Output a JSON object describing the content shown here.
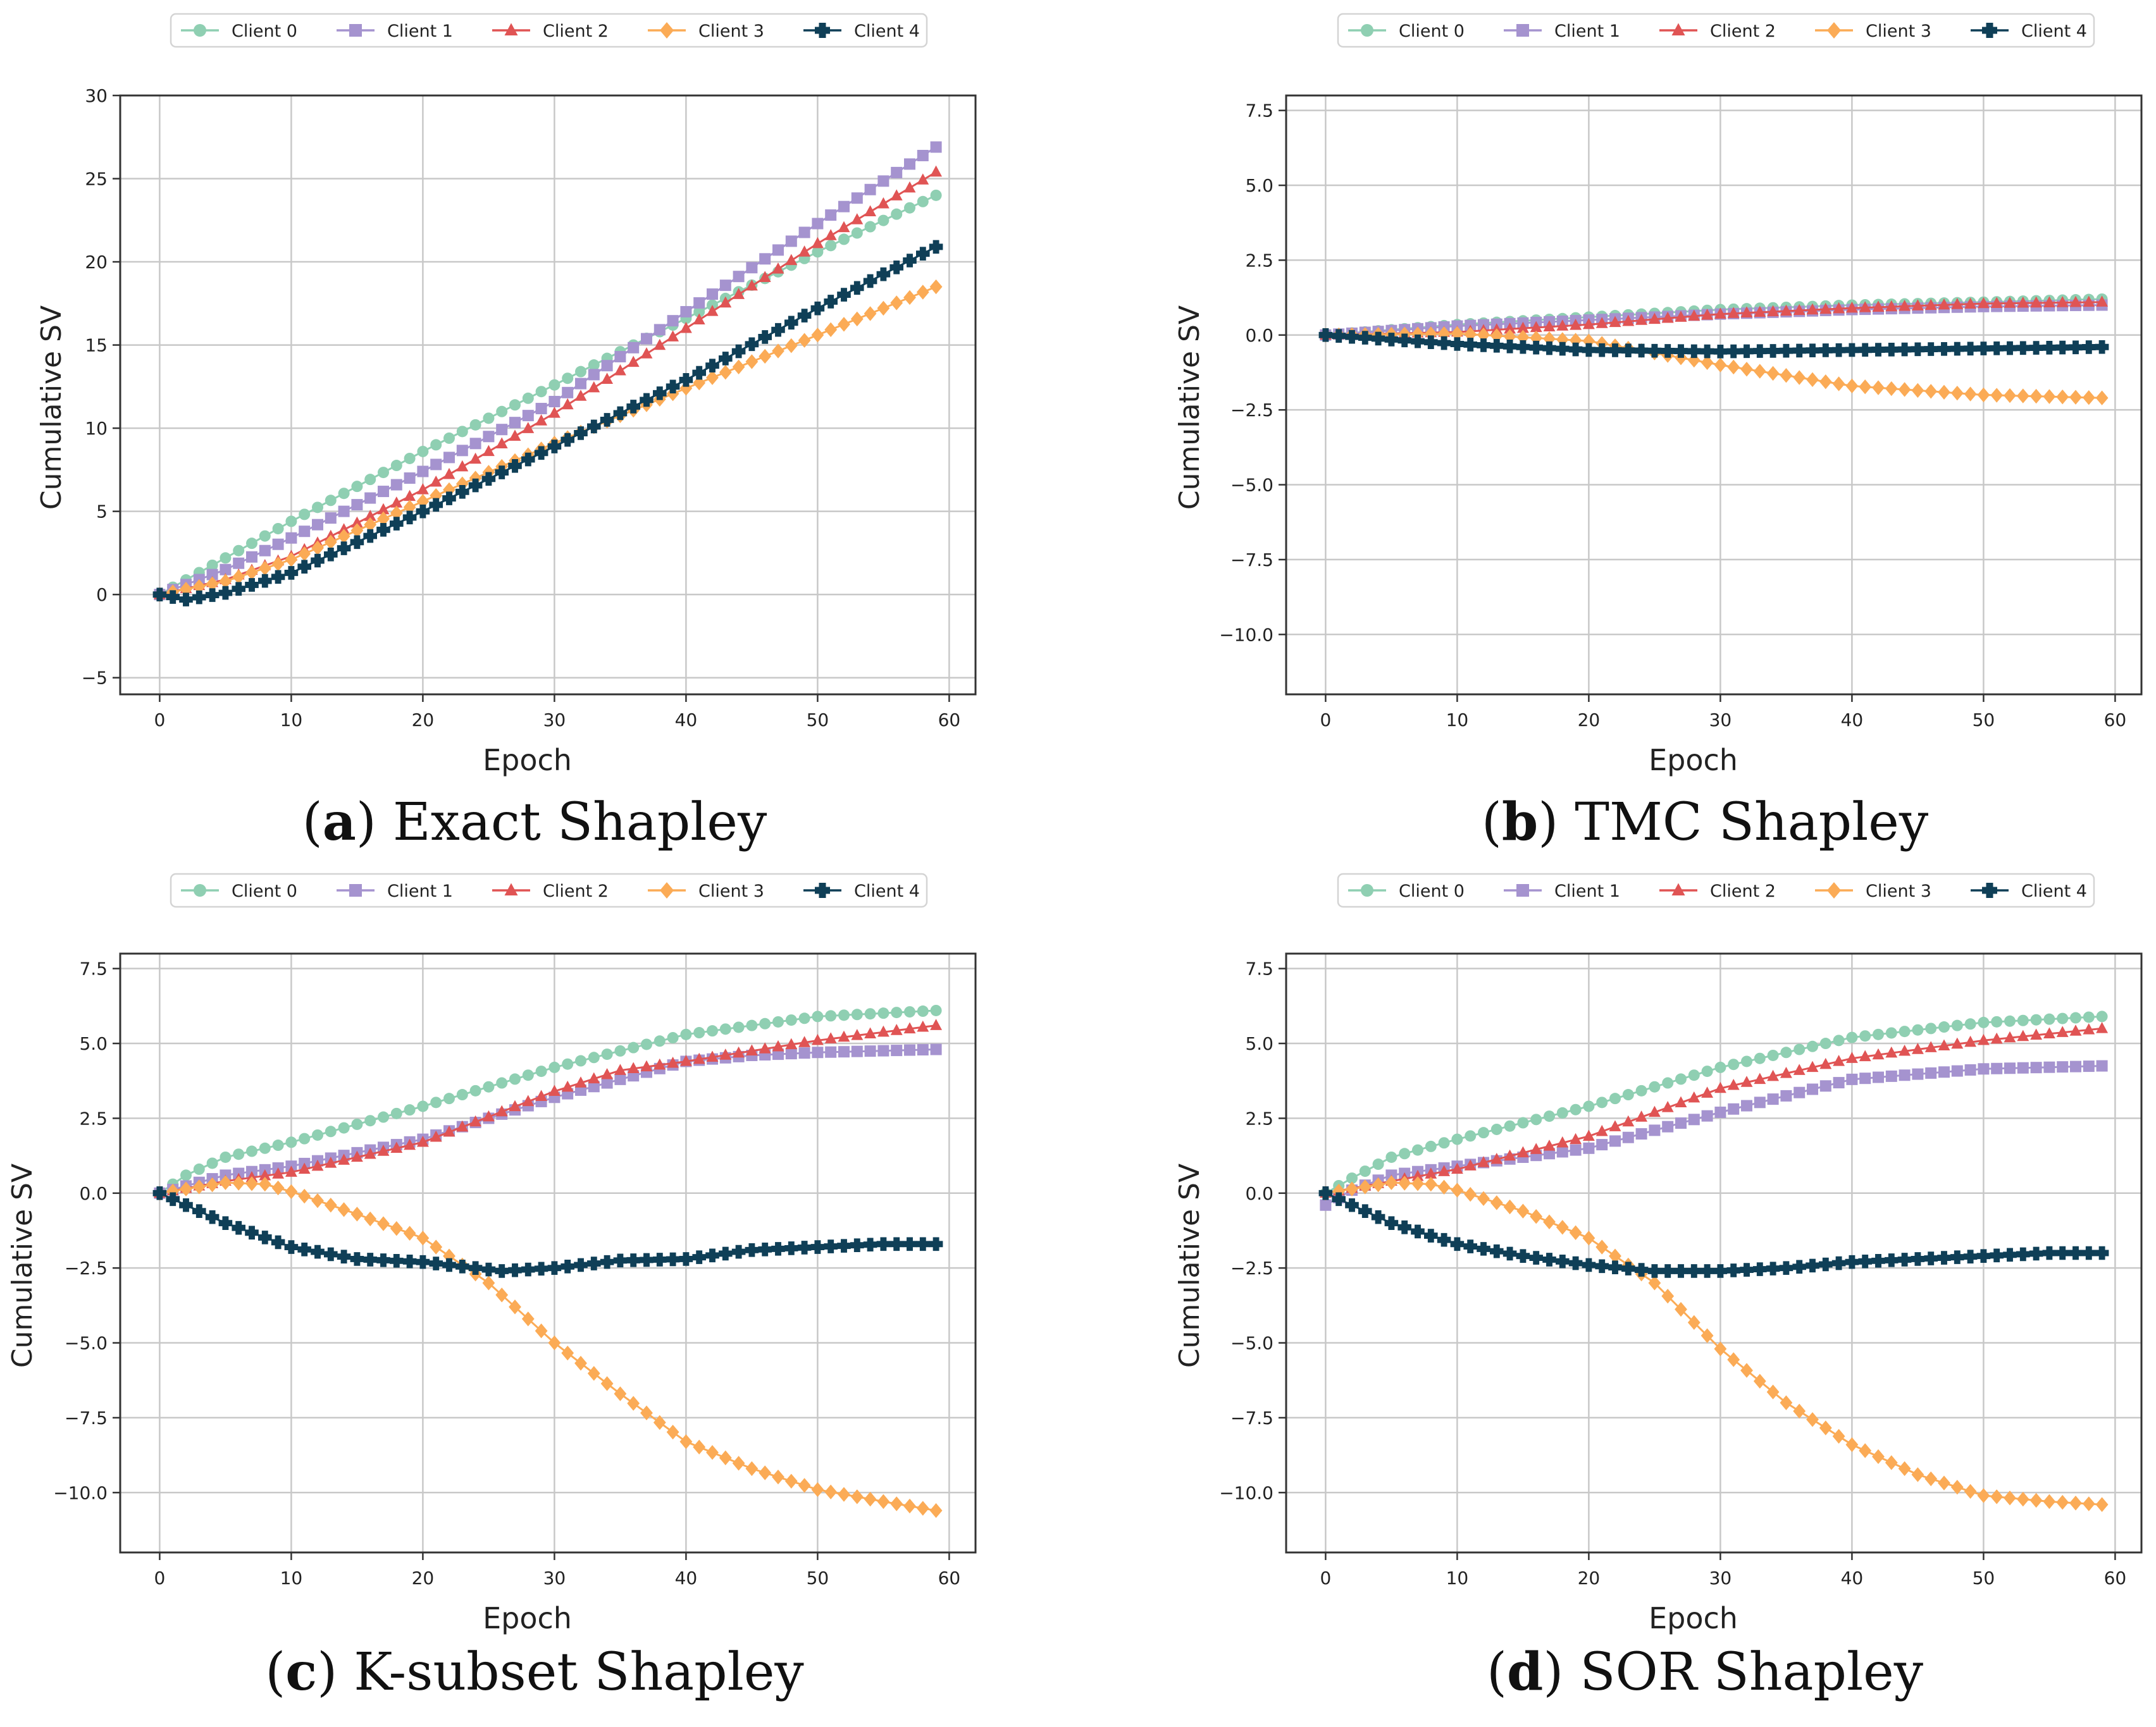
{
  "colors": {
    "client0": "#8fcfb2",
    "client1": "#a593cf",
    "client2": "#e05454",
    "client3": "#fbab56",
    "client4": "#0f3f57"
  },
  "chart_data": [
    {
      "panel": "a",
      "type": "line",
      "caption": {
        "letter": "a",
        "text": "Exact Shapley"
      },
      "xlabel": "Epoch",
      "ylabel": "Cumulative SV",
      "xlim": [
        -3,
        62
      ],
      "ylim": [
        -6,
        30
      ],
      "xticks": [
        0,
        10,
        20,
        30,
        40,
        50,
        60
      ],
      "yticks": [
        -5,
        0,
        5,
        10,
        15,
        20,
        25,
        30
      ],
      "ytick_labels": [
        "−5",
        "0",
        "5",
        "10",
        "15",
        "20",
        "25",
        "30"
      ],
      "legend": [
        "Client 0",
        "Client 1",
        "Client 2",
        "Client 3",
        "Client 4"
      ],
      "series": [
        {
          "name": "Client 0",
          "marker": "circle",
          "color": "#8fcfb2",
          "points": [
            [
              0,
              0
            ],
            [
              5,
              2.2
            ],
            [
              10,
              4.4
            ],
            [
              20,
              8.6
            ],
            [
              30,
              12.6
            ],
            [
              40,
              16.6
            ],
            [
              50,
              20.6
            ],
            [
              59,
              24
            ]
          ]
        },
        {
          "name": "Client 1",
          "marker": "square",
          "color": "#a593cf",
          "points": [
            [
              0,
              0
            ],
            [
              5,
              1.5
            ],
            [
              10,
              3.4
            ],
            [
              20,
              7.4
            ],
            [
              30,
              11.6
            ],
            [
              40,
              17
            ],
            [
              50,
              22.3
            ],
            [
              59,
              26.9
            ]
          ]
        },
        {
          "name": "Client 2",
          "marker": "triangle",
          "color": "#e05454",
          "points": [
            [
              0,
              0
            ],
            [
              5,
              0.9
            ],
            [
              10,
              2.3
            ],
            [
              20,
              6.3
            ],
            [
              30,
              10.9
            ],
            [
              40,
              16
            ],
            [
              50,
              21.1
            ],
            [
              59,
              25.4
            ]
          ]
        },
        {
          "name": "Client 3",
          "marker": "diamond",
          "color": "#fbab56",
          "points": [
            [
              0,
              0
            ],
            [
              5,
              0.8
            ],
            [
              10,
              2.1
            ],
            [
              20,
              5.6
            ],
            [
              30,
              9.1
            ],
            [
              40,
              12.4
            ],
            [
              50,
              15.6
            ],
            [
              59,
              18.5
            ]
          ]
        },
        {
          "name": "Client 4",
          "marker": "plus",
          "color": "#0f3f57",
          "points": [
            [
              0,
              0
            ],
            [
              2,
              -0.3
            ],
            [
              5,
              0.1
            ],
            [
              10,
              1.3
            ],
            [
              20,
              5
            ],
            [
              30,
              8.9
            ],
            [
              40,
              12.9
            ],
            [
              50,
              17.2
            ],
            [
              59,
              20.9
            ]
          ]
        }
      ]
    },
    {
      "panel": "b",
      "type": "line",
      "caption": {
        "letter": "b",
        "text": "TMC Shapley"
      },
      "xlabel": "Epoch",
      "ylabel": "Cumulative SV",
      "xlim": [
        -3,
        62
      ],
      "ylim": [
        -12,
        8
      ],
      "xticks": [
        0,
        10,
        20,
        30,
        40,
        50,
        60
      ],
      "yticks": [
        -10,
        -7.5,
        -5,
        -2.5,
        0,
        2.5,
        5,
        7.5
      ],
      "ytick_labels": [
        "−10.0",
        "−7.5",
        "−5.0",
        "−2.5",
        "0.0",
        "2.5",
        "5.0",
        "7.5"
      ],
      "legend": [
        "Client 0",
        "Client 1",
        "Client 2",
        "Client 3",
        "Client 4"
      ],
      "series": [
        {
          "name": "Client 0",
          "marker": "circle",
          "color": "#8fcfb2",
          "points": [
            [
              0,
              0
            ],
            [
              10,
              0.35
            ],
            [
              20,
              0.6
            ],
            [
              30,
              0.85
            ],
            [
              40,
              1
            ],
            [
              50,
              1.1
            ],
            [
              59,
              1.2
            ]
          ]
        },
        {
          "name": "Client 1",
          "marker": "square",
          "color": "#a593cf",
          "points": [
            [
              0,
              0
            ],
            [
              10,
              0.3
            ],
            [
              20,
              0.5
            ],
            [
              30,
              0.7
            ],
            [
              40,
              0.85
            ],
            [
              50,
              0.95
            ],
            [
              59,
              1
            ]
          ]
        },
        {
          "name": "Client 2",
          "marker": "triangle",
          "color": "#e05454",
          "points": [
            [
              0,
              0
            ],
            [
              10,
              0.1
            ],
            [
              20,
              0.35
            ],
            [
              30,
              0.7
            ],
            [
              40,
              0.9
            ],
            [
              50,
              1.05
            ],
            [
              59,
              1.1
            ]
          ]
        },
        {
          "name": "Client 3",
          "marker": "diamond",
          "color": "#fbab56",
          "points": [
            [
              0,
              0
            ],
            [
              10,
              0.05
            ],
            [
              20,
              -0.2
            ],
            [
              25,
              -0.6
            ],
            [
              30,
              -1
            ],
            [
              40,
              -1.7
            ],
            [
              50,
              -2
            ],
            [
              59,
              -2.1
            ]
          ]
        },
        {
          "name": "Client 4",
          "marker": "plus",
          "color": "#0f3f57",
          "points": [
            [
              0,
              0
            ],
            [
              10,
              -0.3
            ],
            [
              20,
              -0.5
            ],
            [
              30,
              -0.55
            ],
            [
              40,
              -0.5
            ],
            [
              50,
              -0.45
            ],
            [
              59,
              -0.4
            ]
          ]
        }
      ]
    },
    {
      "panel": "c",
      "type": "line",
      "caption": {
        "letter": "c",
        "text": "K-subset Shapley"
      },
      "xlabel": "Epoch",
      "ylabel": "Cumulative SV",
      "xlim": [
        -3,
        62
      ],
      "ylim": [
        -12,
        8
      ],
      "xticks": [
        0,
        10,
        20,
        30,
        40,
        50,
        60
      ],
      "yticks": [
        -10,
        -7.5,
        -5,
        -2.5,
        0,
        2.5,
        5,
        7.5
      ],
      "ytick_labels": [
        "−10.0",
        "−7.5",
        "−5.0",
        "−2.5",
        "0.0",
        "2.5",
        "5.0",
        "7.5"
      ],
      "legend": [
        "Client 0",
        "Client 1",
        "Client 2",
        "Client 3",
        "Client 4"
      ],
      "series": [
        {
          "name": "Client 0",
          "marker": "circle",
          "color": "#8fcfb2",
          "points": [
            [
              0,
              0
            ],
            [
              2,
              0.6
            ],
            [
              5,
              1.2
            ],
            [
              10,
              1.7
            ],
            [
              20,
              2.9
            ],
            [
              30,
              4.2
            ],
            [
              40,
              5.3
            ],
            [
              50,
              5.9
            ],
            [
              59,
              6.1
            ]
          ]
        },
        {
          "name": "Client 1",
          "marker": "square",
          "color": "#a593cf",
          "points": [
            [
              0,
              0
            ],
            [
              5,
              0.6
            ],
            [
              10,
              0.9
            ],
            [
              20,
              1.8
            ],
            [
              30,
              3.2
            ],
            [
              40,
              4.4
            ],
            [
              45,
              4.6
            ],
            [
              50,
              4.7
            ],
            [
              59,
              4.8
            ]
          ]
        },
        {
          "name": "Client 2",
          "marker": "triangle",
          "color": "#e05454",
          "points": [
            [
              0,
              0
            ],
            [
              5,
              0.4
            ],
            [
              10,
              0.7
            ],
            [
              20,
              1.7
            ],
            [
              30,
              3.4
            ],
            [
              35,
              4.1
            ],
            [
              40,
              4.4
            ],
            [
              50,
              5.1
            ],
            [
              59,
              5.6
            ]
          ]
        },
        {
          "name": "Client 3",
          "marker": "diamond",
          "color": "#fbab56",
          "points": [
            [
              0,
              0
            ],
            [
              5,
              0.35
            ],
            [
              8,
              0.3
            ],
            [
              10,
              0.05
            ],
            [
              15,
              -0.7
            ],
            [
              20,
              -1.5
            ],
            [
              25,
              -3
            ],
            [
              30,
              -5
            ],
            [
              35,
              -6.7
            ],
            [
              40,
              -8.3
            ],
            [
              45,
              -9.2
            ],
            [
              50,
              -9.9
            ],
            [
              55,
              -10.3
            ],
            [
              59,
              -10.6
            ]
          ]
        },
        {
          "name": "Client 4",
          "marker": "plus",
          "color": "#0f3f57",
          "points": [
            [
              0,
              0
            ],
            [
              5,
              -1
            ],
            [
              10,
              -1.8
            ],
            [
              15,
              -2.2
            ],
            [
              20,
              -2.3
            ],
            [
              26,
              -2.6
            ],
            [
              30,
              -2.5
            ],
            [
              35,
              -2.25
            ],
            [
              40,
              -2.2
            ],
            [
              45,
              -1.9
            ],
            [
              50,
              -1.8
            ],
            [
              55,
              -1.7
            ],
            [
              59,
              -1.7
            ]
          ]
        }
      ]
    },
    {
      "panel": "d",
      "type": "line",
      "caption": {
        "letter": "d",
        "text": "SOR Shapley"
      },
      "xlabel": "Epoch",
      "ylabel": "Cumulative SV",
      "xlim": [
        -3,
        62
      ],
      "ylim": [
        -12,
        8
      ],
      "xticks": [
        0,
        10,
        20,
        30,
        40,
        50,
        60
      ],
      "yticks": [
        -10,
        -7.5,
        -5,
        -2.5,
        0,
        2.5,
        5,
        7.5
      ],
      "ytick_labels": [
        "−10.0",
        "−7.5",
        "−5.0",
        "−2.5",
        "0.0",
        "2.5",
        "5.0",
        "7.5"
      ],
      "legend": [
        "Client 0",
        "Client 1",
        "Client 2",
        "Client 3",
        "Client 4"
      ],
      "series": [
        {
          "name": "Client 0",
          "marker": "circle",
          "color": "#8fcfb2",
          "points": [
            [
              0,
              0
            ],
            [
              2,
              0.5
            ],
            [
              5,
              1.2
            ],
            [
              10,
              1.8
            ],
            [
              20,
              2.9
            ],
            [
              30,
              4.2
            ],
            [
              40,
              5.2
            ],
            [
              50,
              5.7
            ],
            [
              59,
              5.9
            ]
          ]
        },
        {
          "name": "Client 1",
          "marker": "square",
          "color": "#a593cf",
          "points": [
            [
              0,
              -0.4
            ],
            [
              2,
              0.1
            ],
            [
              5,
              0.6
            ],
            [
              10,
              0.9
            ],
            [
              20,
              1.5
            ],
            [
              30,
              2.7
            ],
            [
              40,
              3.8
            ],
            [
              50,
              4.15
            ],
            [
              59,
              4.25
            ]
          ]
        },
        {
          "name": "Client 2",
          "marker": "triangle",
          "color": "#e05454",
          "points": [
            [
              0,
              0
            ],
            [
              5,
              0.4
            ],
            [
              10,
              0.8
            ],
            [
              20,
              1.9
            ],
            [
              30,
              3.5
            ],
            [
              40,
              4.5
            ],
            [
              50,
              5.1
            ],
            [
              59,
              5.5
            ]
          ]
        },
        {
          "name": "Client 3",
          "marker": "diamond",
          "color": "#fbab56",
          "points": [
            [
              0,
              0
            ],
            [
              5,
              0.35
            ],
            [
              8,
              0.3
            ],
            [
              10,
              0.1
            ],
            [
              15,
              -0.6
            ],
            [
              20,
              -1.5
            ],
            [
              25,
              -3
            ],
            [
              30,
              -5.2
            ],
            [
              35,
              -7
            ],
            [
              40,
              -8.4
            ],
            [
              45,
              -9.4
            ],
            [
              50,
              -10.1
            ],
            [
              55,
              -10.3
            ],
            [
              59,
              -10.4
            ]
          ]
        },
        {
          "name": "Client 4",
          "marker": "plus",
          "color": "#0f3f57",
          "points": [
            [
              0,
              0
            ],
            [
              5,
              -1
            ],
            [
              10,
              -1.7
            ],
            [
              15,
              -2.1
            ],
            [
              20,
              -2.4
            ],
            [
              25,
              -2.6
            ],
            [
              30,
              -2.6
            ],
            [
              35,
              -2.5
            ],
            [
              40,
              -2.3
            ],
            [
              45,
              -2.2
            ],
            [
              50,
              -2.1
            ],
            [
              55,
              -2
            ],
            [
              59,
              -2
            ]
          ]
        }
      ]
    }
  ]
}
